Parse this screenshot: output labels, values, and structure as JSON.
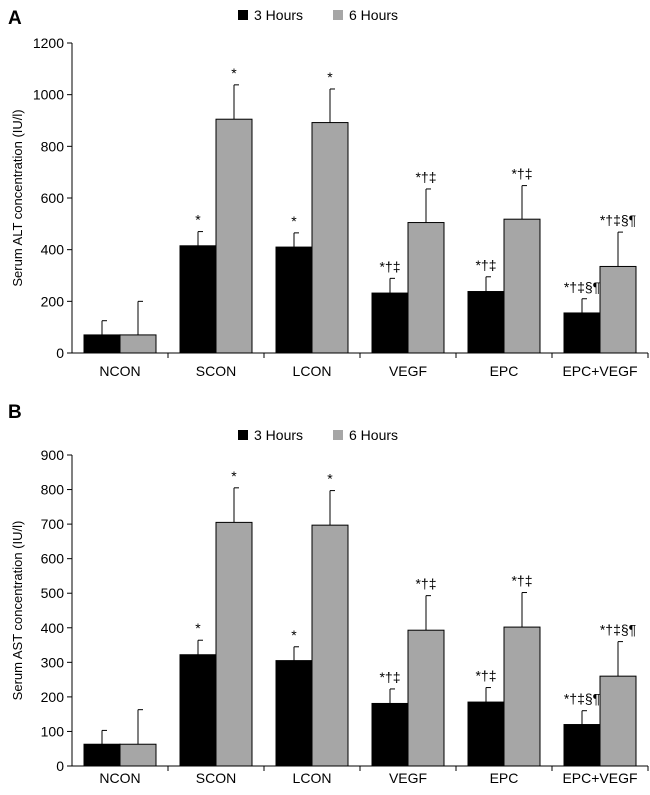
{
  "chart_data": [
    {
      "panel_label": "A",
      "type": "bar",
      "categories": [
        "NCON",
        "SCON",
        "LCON",
        "VEGF",
        "EPC",
        "EPC+VEGF"
      ],
      "series": [
        {
          "name": "3 Hours",
          "color": "#000000",
          "values": [
            70,
            415,
            410,
            232,
            238,
            155
          ],
          "errors": [
            55,
            55,
            55,
            57,
            57,
            55
          ],
          "annotations": [
            "",
            "*",
            "*",
            "*†‡",
            "*†‡",
            "*†‡§¶"
          ]
        },
        {
          "name": "6 Hours",
          "color": "#a6a6a6",
          "values": [
            70,
            905,
            892,
            505,
            518,
            335
          ],
          "errors": [
            130,
            133,
            130,
            130,
            130,
            133
          ],
          "annotations": [
            "",
            "*",
            "*",
            "*†‡",
            "*†‡",
            "*†‡§¶"
          ]
        }
      ],
      "ylabel": "Serum ALT concentration (IU/l)",
      "ylim": [
        0,
        1200
      ],
      "yticks": [
        "0",
        "200",
        "400",
        "600",
        "800",
        "1000",
        "1200"
      ],
      "grid": false,
      "legend": "top-center"
    },
    {
      "panel_label": "B",
      "type": "bar",
      "categories": [
        "NCON",
        "SCON",
        "LCON",
        "VEGF",
        "EPC",
        "EPC+VEGF"
      ],
      "series": [
        {
          "name": "3 Hours",
          "color": "#000000",
          "values": [
            63,
            322,
            305,
            181,
            185,
            120
          ],
          "errors": [
            40,
            42,
            40,
            42,
            42,
            40
          ],
          "annotations": [
            "",
            "*",
            "*",
            "*†‡",
            "*†‡",
            "*†‡§¶"
          ]
        },
        {
          "name": "6 Hours",
          "color": "#a6a6a6",
          "values": [
            63,
            705,
            697,
            393,
            402,
            260
          ],
          "errors": [
            100,
            100,
            100,
            100,
            100,
            100
          ],
          "annotations": [
            "",
            "*",
            "*",
            "*†‡",
            "*†‡",
            "*†‡§¶"
          ]
        }
      ],
      "ylabel": "Serum AST concentration (IU/l)",
      "ylim": [
        0,
        900
      ],
      "yticks": [
        "0",
        "100",
        "200",
        "300",
        "400",
        "500",
        "600",
        "700",
        "800",
        "900"
      ],
      "grid": false,
      "legend": "top-center"
    }
  ]
}
